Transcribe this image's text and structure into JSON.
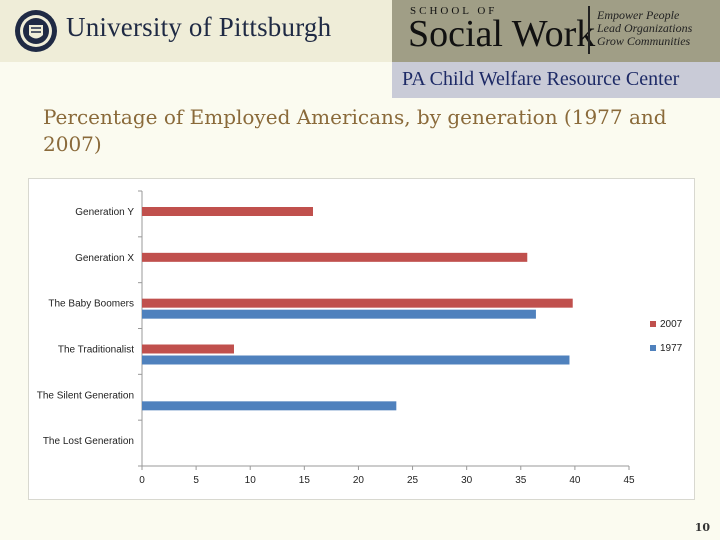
{
  "header": {
    "university_name": "University of Pittsburgh",
    "school_top": "SCHOOL OF",
    "school_name": "Social Work",
    "taglines": [
      "Empower People",
      "Lead Organizations",
      "Grow Communities"
    ],
    "center_name": "PA Child Welfare Resource Center",
    "colors": {
      "left_band": "#efedd8",
      "right_band": "#a09e86",
      "center_band": "#c9cbd7"
    },
    "seal_icon": "university-seal-icon"
  },
  "slide": {
    "title": "Percentage of Employed Americans, by generation (1977 and 2007)",
    "page_number": "10"
  },
  "chart_data": {
    "type": "bar",
    "orientation": "horizontal",
    "categories": [
      "Generation Y",
      "Generation X",
      "The Baby Boomers",
      "The Traditionalist",
      "The Silent Generation",
      "The Lost Generation"
    ],
    "series": [
      {
        "name": "2007",
        "color": "#c0504d",
        "values": [
          15.8,
          35.6,
          39.8,
          8.5,
          null,
          null
        ]
      },
      {
        "name": "1977",
        "color": "#4f81bd",
        "values": [
          null,
          null,
          36.4,
          39.5,
          23.5,
          null
        ]
      }
    ],
    "x_ticks": [
      0,
      5,
      10,
      15,
      20,
      25,
      30,
      35,
      40,
      45
    ],
    "xlim": [
      0,
      45
    ],
    "grid": false,
    "legend_position": "right"
  }
}
